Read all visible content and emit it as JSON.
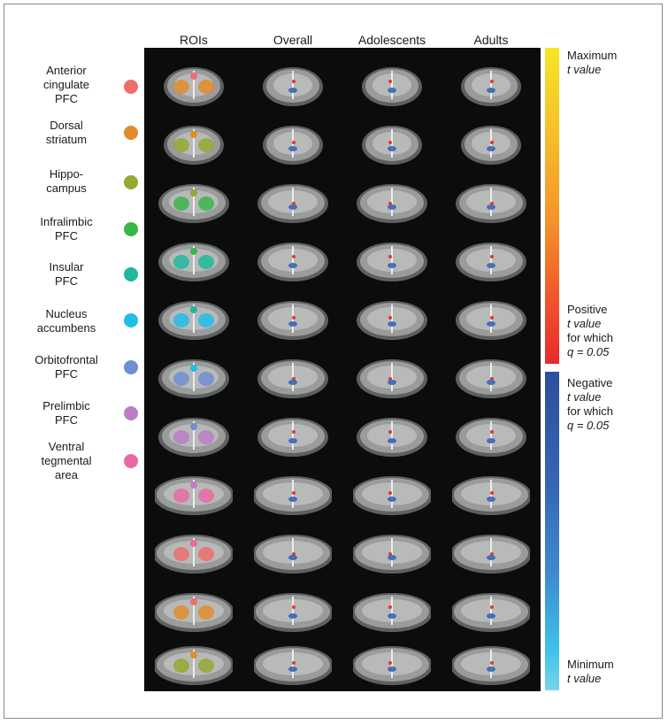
{
  "columns": [
    "ROIs",
    "Overall",
    "Adolescents",
    "Adults"
  ],
  "legend": [
    {
      "label": "Anterior cingulate PFC",
      "lines": [
        "Anterior",
        "cingulate",
        "PFC"
      ],
      "color": "#ef6f6a"
    },
    {
      "label": "Dorsal striatum",
      "lines": [
        "Dorsal",
        "striatum"
      ],
      "color": "#e08c2c"
    },
    {
      "label": "Hippocampus",
      "lines": [
        "Hippo-",
        "campus"
      ],
      "color": "#93a930"
    },
    {
      "label": "Infralimbic PFC",
      "lines": [
        "Infralimbic",
        "PFC"
      ],
      "color": "#39b54a"
    },
    {
      "label": "Insular PFC",
      "lines": [
        "Insular",
        "PFC"
      ],
      "color": "#1fb89a"
    },
    {
      "label": "Nucleus accumbens",
      "lines": [
        "Nucleus",
        "accumbens"
      ],
      "color": "#20bde8"
    },
    {
      "label": "Orbitofrontal PFC",
      "lines": [
        "Orbitofrontal",
        "PFC"
      ],
      "color": "#6f8fd0"
    },
    {
      "label": "Prelimbic PFC",
      "lines": [
        "Prelimbic",
        "PFC"
      ],
      "color": "#b97fc4"
    },
    {
      "label": "Ventral tegmental area",
      "lines": [
        "Ventral",
        "tegmental",
        "area"
      ],
      "color": "#e76aa6"
    }
  ],
  "colorbar": {
    "max_label": [
      "Maximum",
      "t value"
    ],
    "pos_threshold_label": [
      "Positive",
      "t value",
      "for which",
      "q = 0.05"
    ],
    "neg_threshold_label": [
      "Negative",
      "t value",
      "for which",
      "q = 0.05"
    ],
    "min_label": [
      "Minimum",
      "t value"
    ]
  },
  "colors": {
    "positive_high": "#f7e626",
    "positive_low": "#e82a2b",
    "negative_high": "#2d4e9f",
    "negative_low": "#7dd3ea"
  }
}
